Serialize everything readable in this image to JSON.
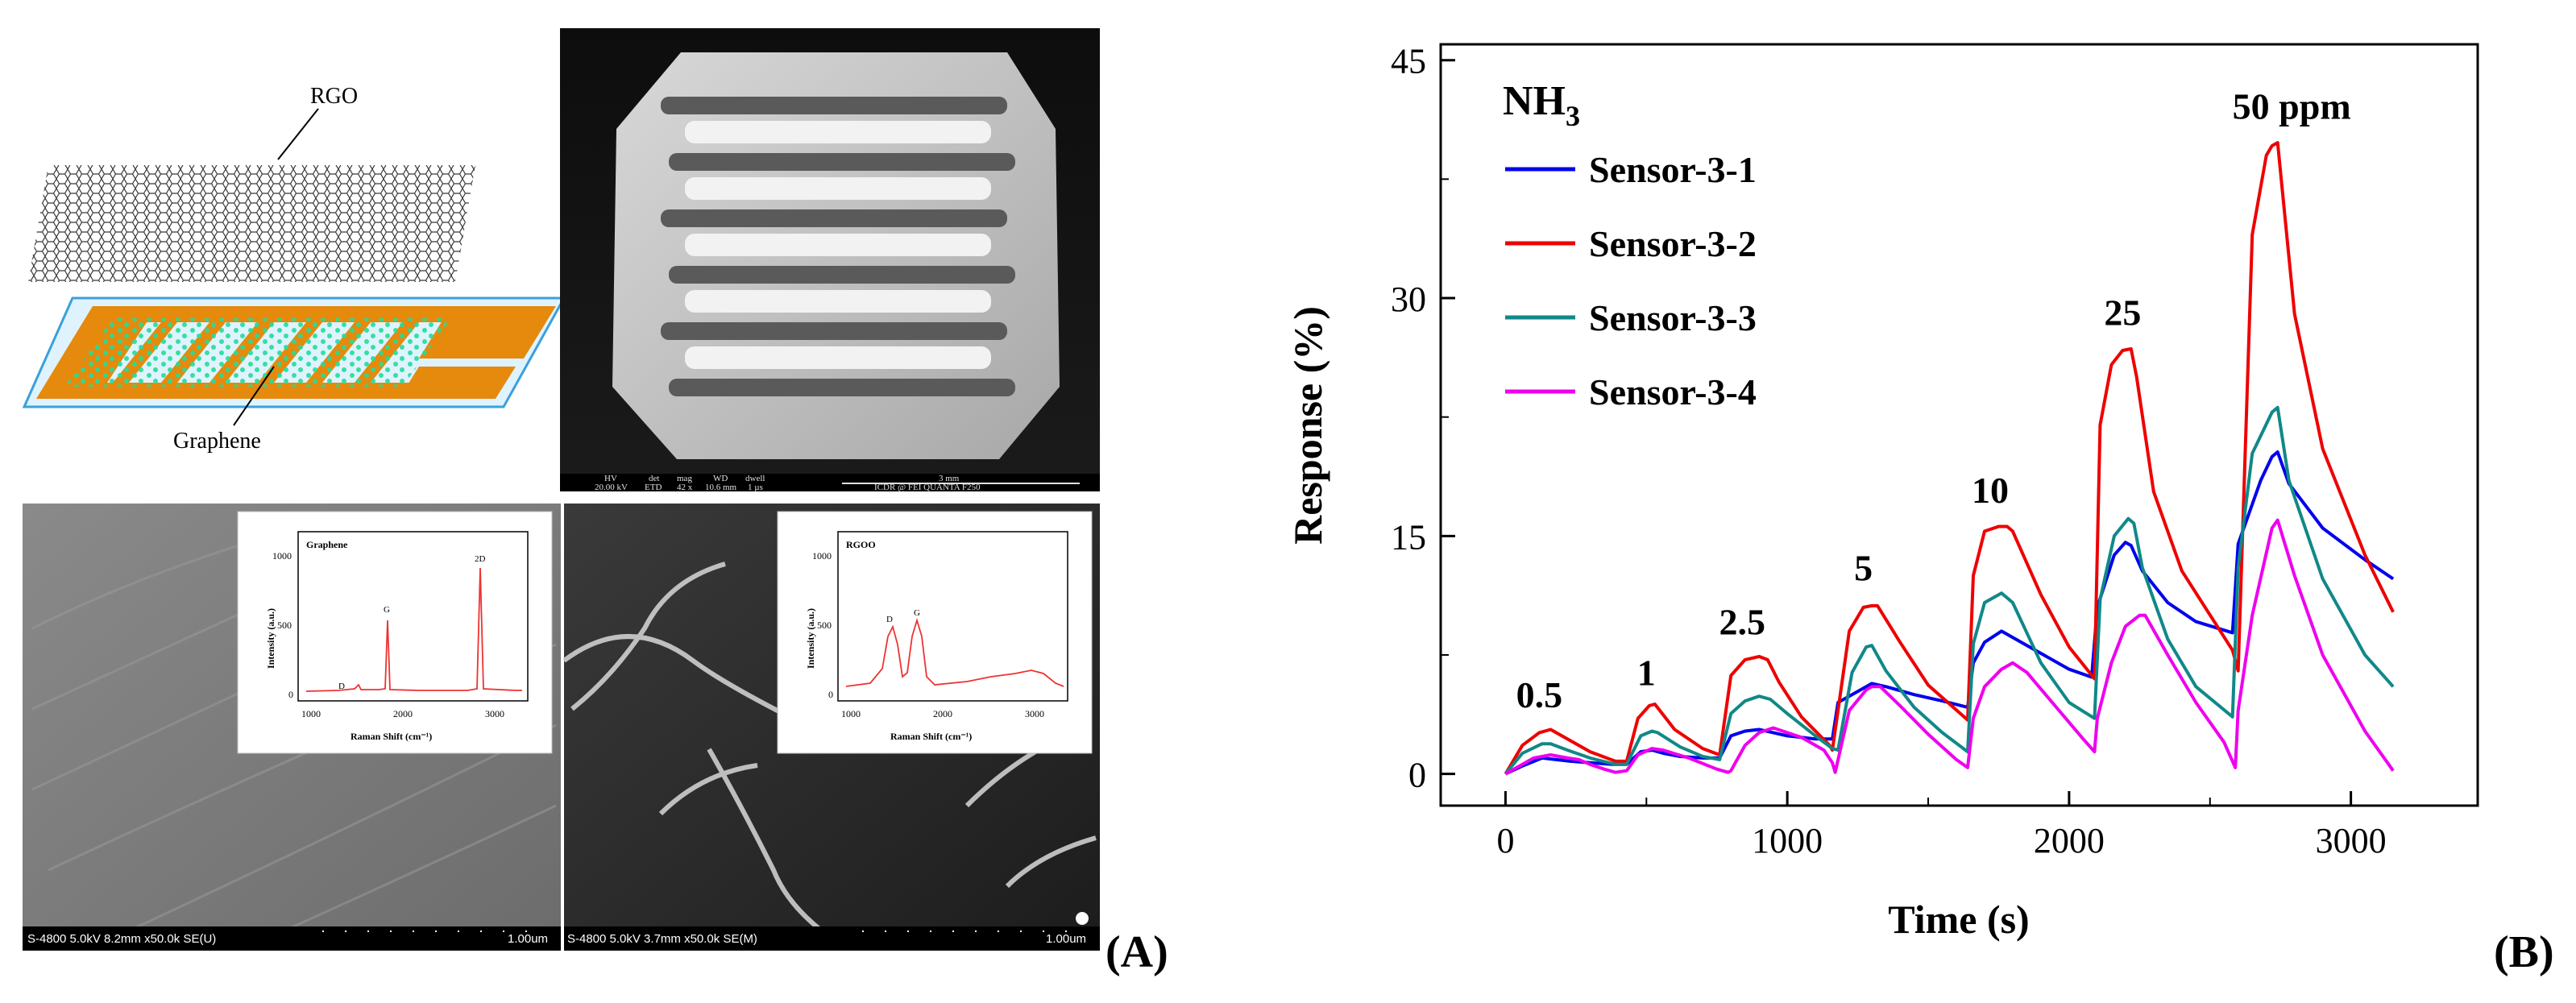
{
  "panel_a": {
    "label": "(A)",
    "schematic": {
      "top_label": "RGO",
      "bottom_label": "Graphene"
    },
    "sem_top": {
      "info_headers": [
        "HV",
        "det",
        "mag",
        "WD",
        "dwell"
      ],
      "info_values": [
        "20.00 kV",
        "ETD",
        "42 x",
        "10.6 mm",
        "1 µs"
      ],
      "scale": "3 mm",
      "footer": "ICDR @ FEI QUANTA  F250"
    },
    "sem_left": {
      "caption": "S-4800 5.0kV 8.2mm x50.0k SE(U)",
      "scale": "1.00um"
    },
    "sem_right": {
      "caption": "S-4800 5.0kV 3.7mm x50.0k SE(M)",
      "scale": "1.00um"
    },
    "inset_graphene": {
      "title": "Graphene",
      "ylabel": "Intensity (a.u.)",
      "xlabel": "Raman Shift (cm⁻¹)",
      "xticks": [
        "1000",
        "2000",
        "3000"
      ],
      "yticks": [
        "0",
        "500",
        "1000"
      ],
      "peaks": [
        "D",
        "G",
        "2D"
      ]
    },
    "inset_rgo": {
      "title": "RGOO",
      "ylabel": "Intensity (a.u.)",
      "xlabel": "Raman Shift (cm⁻¹)",
      "xticks": [
        "1000",
        "2000",
        "3000"
      ],
      "yticks": [
        "0",
        "500",
        "1000"
      ],
      "peaks": [
        "D",
        "G"
      ]
    }
  },
  "chart_data": {
    "type": "line",
    "panel_label": "(B)",
    "gas_label_main": "NH",
    "gas_label_sub": "3",
    "xlabel": "Time (s)",
    "ylabel": "Response (%)",
    "xlim": [
      -230,
      3450
    ],
    "ylim": [
      -2,
      46
    ],
    "xticks": [
      0,
      1000,
      2000,
      3000
    ],
    "yticks": [
      0,
      15,
      30,
      45
    ],
    "annotations": [
      {
        "text": "0.5",
        "x": 120,
        "y": 4.2
      },
      {
        "text": "1",
        "x": 500,
        "y": 5.6
      },
      {
        "text": "2.5",
        "x": 840,
        "y": 8.8
      },
      {
        "text": "5",
        "x": 1270,
        "y": 12.2
      },
      {
        "text": "10",
        "x": 1720,
        "y": 17.1
      },
      {
        "text": "25",
        "x": 2190,
        "y": 28.3
      },
      {
        "text": "50 ppm",
        "x": 2790,
        "y": 41.3
      }
    ],
    "series": [
      {
        "name": "Sensor-3-1",
        "color": "#0000ee",
        "x": [
          0,
          60,
          130,
          180,
          230,
          300,
          380,
          430,
          480,
          520,
          560,
          620,
          700,
          760,
          800,
          850,
          900,
          950,
          1000,
          1050,
          1100,
          1160,
          1180,
          1250,
          1300,
          1350,
          1450,
          1550,
          1640,
          1660,
          1700,
          1760,
          1800,
          1900,
          2000,
          2080,
          2100,
          2160,
          2200,
          2220,
          2260,
          2350,
          2450,
          2580,
          2600,
          2680,
          2720,
          2740,
          2780,
          2900,
          3050,
          3150
        ],
        "values": [
          0,
          0.5,
          1.0,
          0.9,
          0.8,
          0.7,
          0.6,
          0.6,
          1.4,
          1.5,
          1.3,
          1.1,
          1.0,
          1.0,
          2.4,
          2.7,
          2.8,
          2.6,
          2.4,
          2.3,
          2.2,
          2.2,
          4.5,
          5.2,
          5.7,
          5.5,
          5.0,
          4.6,
          4.2,
          7.0,
          8.3,
          9.0,
          8.6,
          7.6,
          6.6,
          6.1,
          10.5,
          13.8,
          14.6,
          14.4,
          12.8,
          10.8,
          9.6,
          8.9,
          14.5,
          18.5,
          20.0,
          20.3,
          18.3,
          15.5,
          13.5,
          12.3
        ]
      },
      {
        "name": "Sensor-3-2",
        "color": "#ee0000",
        "x": [
          0,
          60,
          120,
          160,
          200,
          300,
          390,
          430,
          470,
          510,
          530,
          600,
          700,
          760,
          800,
          850,
          900,
          930,
          970,
          1050,
          1150,
          1160,
          1220,
          1270,
          1300,
          1320,
          1400,
          1500,
          1640,
          1660,
          1700,
          1750,
          1780,
          1800,
          1900,
          2000,
          2090,
          2110,
          2150,
          2190,
          2220,
          2240,
          2300,
          2400,
          2580,
          2600,
          2650,
          2700,
          2720,
          2740,
          2800,
          2900,
          3050,
          3150
        ],
        "values": [
          0,
          1.8,
          2.6,
          2.8,
          2.4,
          1.4,
          0.8,
          0.8,
          3.5,
          4.3,
          4.4,
          2.8,
          1.6,
          1.2,
          6.2,
          7.2,
          7.4,
          7.2,
          5.8,
          3.6,
          1.8,
          1.5,
          9.0,
          10.5,
          10.6,
          10.6,
          8.3,
          5.6,
          3.4,
          12.5,
          15.3,
          15.6,
          15.6,
          15.3,
          11.3,
          8.0,
          6.0,
          22.0,
          25.8,
          26.7,
          26.8,
          25.0,
          17.8,
          12.8,
          7.8,
          6.5,
          34.0,
          39.0,
          39.6,
          39.8,
          29.0,
          20.5,
          13.8,
          10.2
        ]
      },
      {
        "name": "Sensor-3-3",
        "color": "#118888",
        "x": [
          0,
          60,
          130,
          160,
          220,
          300,
          390,
          430,
          480,
          520,
          540,
          620,
          700,
          760,
          800,
          850,
          900,
          940,
          1000,
          1100,
          1160,
          1180,
          1230,
          1280,
          1300,
          1350,
          1450,
          1550,
          1640,
          1660,
          1700,
          1760,
          1800,
          1900,
          2000,
          2090,
          2110,
          2160,
          2210,
          2230,
          2260,
          2350,
          2450,
          2580,
          2600,
          2650,
          2720,
          2740,
          2780,
          2900,
          3050,
          3150
        ],
        "values": [
          0,
          1.3,
          1.9,
          1.9,
          1.5,
          1.0,
          0.6,
          0.6,
          2.4,
          2.7,
          2.6,
          1.7,
          1.1,
          0.9,
          3.8,
          4.6,
          4.9,
          4.7,
          3.8,
          2.4,
          1.6,
          1.5,
          6.4,
          8.0,
          8.1,
          6.5,
          4.2,
          2.6,
          1.4,
          8.2,
          10.8,
          11.4,
          10.8,
          7.0,
          4.5,
          3.5,
          11.0,
          15.0,
          16.1,
          15.8,
          13.0,
          8.5,
          5.5,
          3.6,
          13.0,
          20.2,
          22.8,
          23.1,
          18.5,
          12.3,
          7.5,
          5.5
        ]
      },
      {
        "name": "Sensor-3-4",
        "color": "#ee00ee",
        "x": [
          0,
          50,
          100,
          160,
          220,
          260,
          300,
          350,
          390,
          430,
          470,
          520,
          560,
          650,
          750,
          790,
          800,
          850,
          900,
          950,
          1050,
          1130,
          1160,
          1170,
          1220,
          1280,
          1300,
          1330,
          1400,
          1500,
          1600,
          1640,
          1660,
          1700,
          1760,
          1800,
          1850,
          1950,
          2050,
          2090,
          2100,
          2150,
          2200,
          2250,
          2270,
          2350,
          2450,
          2550,
          2590,
          2600,
          2650,
          2720,
          2740,
          2800,
          2900,
          3050,
          3150
        ],
        "values": [
          0,
          0.5,
          1.0,
          1.2,
          1.0,
          0.9,
          0.6,
          0.3,
          0.1,
          0.2,
          1.2,
          1.6,
          1.5,
          1.0,
          0.3,
          0.1,
          0.2,
          1.8,
          2.6,
          2.9,
          2.3,
          1.5,
          0.7,
          0.1,
          4.0,
          5.3,
          5.5,
          5.5,
          4.3,
          2.5,
          0.9,
          0.4,
          3.5,
          5.5,
          6.6,
          7.0,
          6.4,
          4.3,
          2.2,
          1.4,
          3.5,
          7.0,
          9.3,
          10.0,
          10.0,
          7.5,
          4.5,
          2.0,
          0.4,
          4.0,
          10.0,
          15.5,
          16.0,
          12.5,
          7.5,
          2.7,
          0.2
        ]
      }
    ]
  }
}
